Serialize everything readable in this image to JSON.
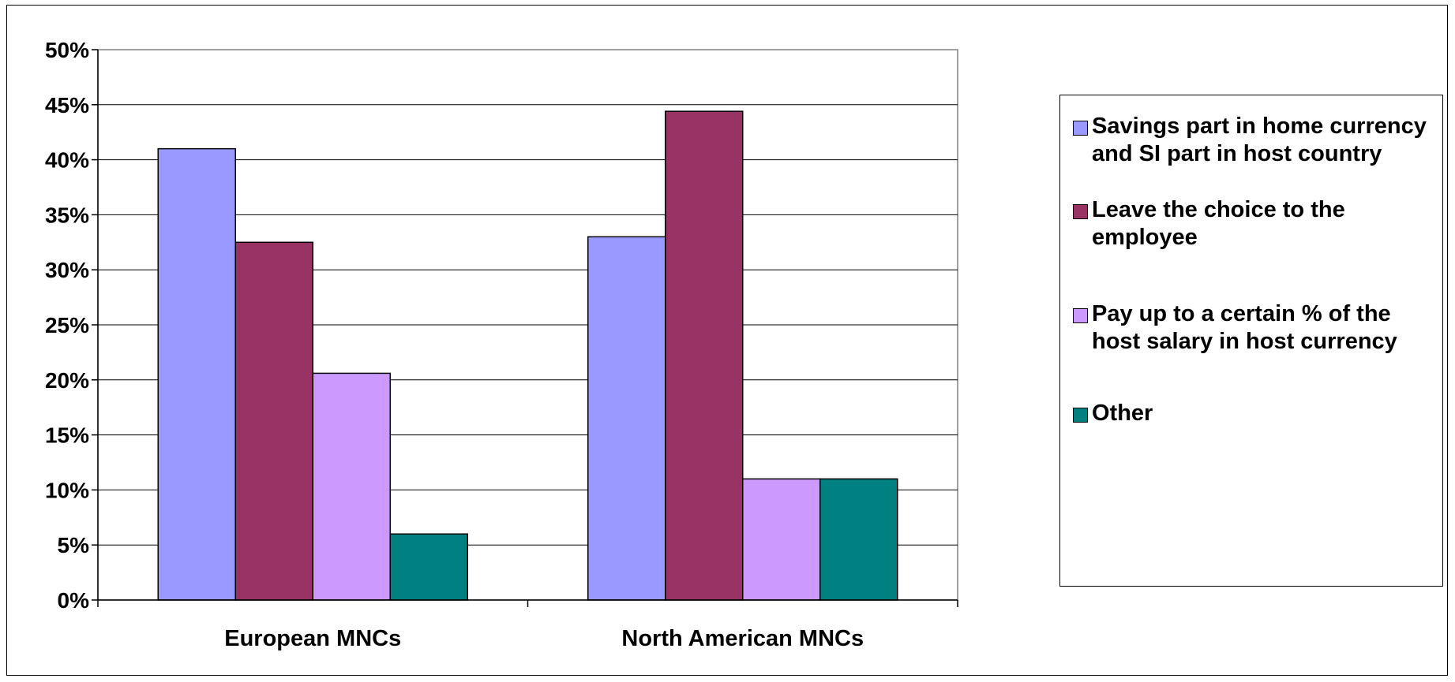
{
  "chart_data": {
    "type": "bar",
    "title": "",
    "xlabel": "",
    "ylabel": "",
    "categories": [
      "European MNCs",
      "North American MNCs"
    ],
    "series": [
      {
        "name": "Savings part in home currency and SI part in host country",
        "values": [
          41,
          33
        ],
        "color": "#9999FF"
      },
      {
        "name": "Leave the choice to the employee",
        "values": [
          32.5,
          44.4
        ],
        "color": "#993366"
      },
      {
        "name": "Pay up to a certain % of the host salary in host currency",
        "values": [
          20.6,
          11
        ],
        "color": "#CC99FF"
      },
      {
        "name": "Other",
        "values": [
          6,
          11
        ],
        "color": "#008080"
      }
    ],
    "ylim": [
      0,
      50
    ],
    "yticks": [
      "0%",
      "5%",
      "10%",
      "15%",
      "20%",
      "25%",
      "30%",
      "35%",
      "40%",
      "45%",
      "50%"
    ],
    "grid": true,
    "legend_position": "right"
  }
}
